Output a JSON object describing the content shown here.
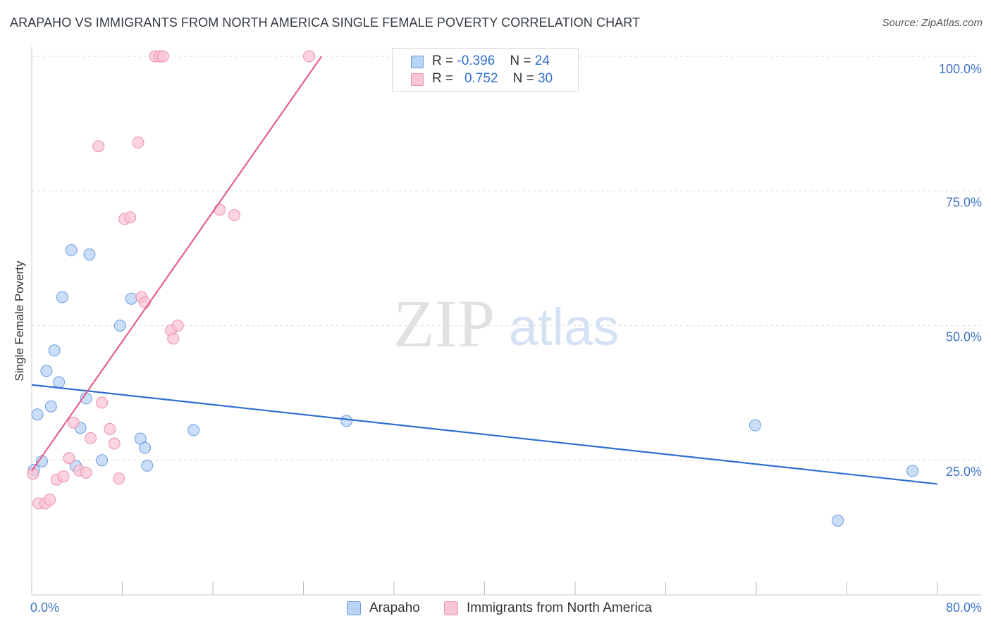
{
  "header": {
    "title": "ARAPAHO VS IMMIGRANTS FROM NORTH AMERICA SINGLE FEMALE POVERTY CORRELATION CHART",
    "source": "Source: ZipAtlas.com"
  },
  "watermark": {
    "zip": "ZIP",
    "atlas": "atlas"
  },
  "colors": {
    "arapaho_fill": "#b9d3f5",
    "arapaho_stroke": "#6a9be0",
    "arapaho_line": "#2f6fcf",
    "imm_fill": "#f9c6d6",
    "imm_stroke": "#ec8fae",
    "imm_line": "#e2628e",
    "axis_label": "#3f73c5",
    "grid": "#dddddd"
  },
  "legend": {
    "rows": [
      {
        "r_label": "R = ",
        "r_value": "-0.396",
        "n_label": "N = ",
        "n_value": "24"
      },
      {
        "r_label": "R = ",
        "r_value": "0.752",
        "n_label": "N = ",
        "n_value": "30"
      }
    ]
  },
  "bottom_legend": {
    "arapaho": "Arapaho",
    "immigrants": "Immigrants from North America"
  },
  "chart_data": {
    "type": "scatter",
    "ylabel": "Single Female Poverty",
    "x_tick_labels": [
      "0.0%",
      "80.0%"
    ],
    "y_tick_labels": [
      "25.0%",
      "50.0%",
      "75.0%",
      "100.0%"
    ],
    "y_ticks": [
      25,
      50,
      75,
      100
    ],
    "xlim": [
      0,
      80
    ],
    "ylim": [
      0,
      100
    ],
    "grid": true,
    "legend_position": "top-center",
    "series": [
      {
        "name": "Arapaho",
        "points": [
          [
            0.2,
            23.2
          ],
          [
            0.5,
            33.5
          ],
          [
            0.9,
            24.8
          ],
          [
            1.3,
            41.6
          ],
          [
            1.7,
            35.0
          ],
          [
            2.0,
            45.4
          ],
          [
            2.4,
            39.5
          ],
          [
            2.7,
            55.3
          ],
          [
            3.5,
            64.0
          ],
          [
            3.9,
            23.9
          ],
          [
            4.3,
            31.0
          ],
          [
            4.8,
            36.5
          ],
          [
            5.1,
            63.2
          ],
          [
            6.2,
            25.0
          ],
          [
            7.8,
            50.0
          ],
          [
            8.8,
            55.0
          ],
          [
            9.6,
            29.0
          ],
          [
            10.0,
            27.3
          ],
          [
            10.2,
            24.0
          ],
          [
            14.3,
            30.6
          ],
          [
            27.8,
            32.3
          ],
          [
            63.9,
            31.5
          ],
          [
            71.2,
            13.8
          ],
          [
            77.8,
            23.0
          ]
        ],
        "trend": {
          "x": [
            0,
            80
          ],
          "y": [
            39.0,
            20.6
          ]
        }
      },
      {
        "name": "Immigrants from North America",
        "points": [
          [
            0.1,
            22.5
          ],
          [
            0.6,
            17.0
          ],
          [
            1.2,
            17.0
          ],
          [
            1.6,
            17.7
          ],
          [
            2.2,
            21.4
          ],
          [
            2.8,
            22.0
          ],
          [
            3.3,
            25.4
          ],
          [
            3.7,
            32.0
          ],
          [
            4.2,
            23.1
          ],
          [
            4.8,
            22.7
          ],
          [
            5.2,
            29.1
          ],
          [
            5.9,
            83.3
          ],
          [
            6.2,
            35.7
          ],
          [
            6.9,
            30.8
          ],
          [
            7.3,
            28.1
          ],
          [
            7.7,
            21.6
          ],
          [
            8.2,
            69.8
          ],
          [
            8.7,
            70.1
          ],
          [
            9.4,
            84.0
          ],
          [
            9.7,
            55.3
          ],
          [
            10.0,
            54.3
          ],
          [
            10.9,
            100.0
          ],
          [
            11.3,
            100.0
          ],
          [
            11.6,
            100.0
          ],
          [
            12.3,
            49.1
          ],
          [
            12.5,
            47.6
          ],
          [
            12.9,
            50.0
          ],
          [
            16.6,
            71.5
          ],
          [
            17.9,
            70.5
          ],
          [
            24.5,
            100.0
          ]
        ],
        "trend": {
          "x": [
            0,
            25.6
          ],
          "y": [
            23.0,
            100.0
          ]
        }
      }
    ]
  }
}
